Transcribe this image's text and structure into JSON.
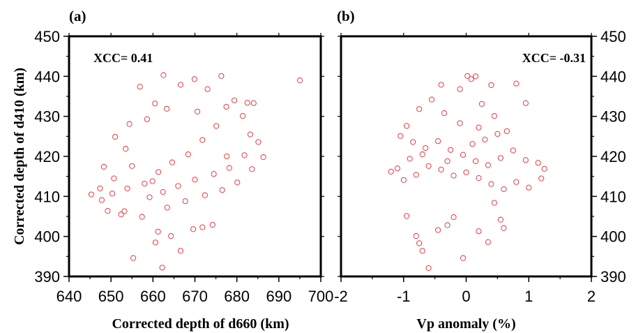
{
  "figure": {
    "marker_color": "#e8262b",
    "frame_color": "#000000"
  },
  "chart_data": [
    {
      "type": "scatter",
      "panel_label": "(a)",
      "annotation": "XCC= 0.41",
      "annotation_placement": "top-left",
      "xlabel": "Corrected depth of d660 (km)",
      "ylabel": "Corrected depth of d410 (km)",
      "xlim": [
        640,
        700
      ],
      "ylim": [
        390,
        450
      ],
      "xticks": [
        "640",
        "650",
        "660",
        "670",
        "680",
        "690",
        "700"
      ],
      "yticks": [
        "390",
        "400",
        "410",
        "420",
        "430",
        "440",
        "450"
      ],
      "ytick_side": "left",
      "grid": false,
      "marker": "open-circle",
      "points": [
        [
          655.3,
          394.6
        ],
        [
          662.2,
          392.2
        ],
        [
          666.6,
          396.4
        ],
        [
          660.6,
          398.5
        ],
        [
          664.3,
          400.1
        ],
        [
          669.6,
          401.8
        ],
        [
          671.8,
          402.3
        ],
        [
          674.2,
          402.9
        ],
        [
          661.2,
          401.2
        ],
        [
          657.4,
          404.9
        ],
        [
          653.2,
          406.3
        ],
        [
          649.2,
          406.4
        ],
        [
          647.8,
          409.1
        ],
        [
          650.3,
          410.7
        ],
        [
          653.9,
          412.0
        ],
        [
          652.4,
          405.5
        ],
        [
          656.9,
          437.4
        ],
        [
          662.5,
          440.3
        ],
        [
          669.9,
          439.3
        ],
        [
          676.3,
          440.1
        ],
        [
          695.0,
          439.0
        ],
        [
          666.6,
          437.9
        ],
        [
          673.0,
          436.8
        ],
        [
          679.4,
          434.0
        ],
        [
          682.5,
          433.4
        ],
        [
          684.0,
          433.3
        ],
        [
          660.5,
          433.2
        ],
        [
          658.6,
          429.3
        ],
        [
          654.4,
          428.1
        ],
        [
          663.3,
          431.9
        ],
        [
          670.6,
          431.2
        ],
        [
          677.5,
          432.4
        ],
        [
          681.4,
          430.1
        ],
        [
          683.2,
          425.5
        ],
        [
          685.1,
          423.6
        ],
        [
          686.3,
          419.8
        ],
        [
          683.6,
          416.8
        ],
        [
          681.8,
          420.3
        ],
        [
          677.6,
          420.0
        ],
        [
          675.1,
          427.6
        ],
        [
          671.8,
          424.1
        ],
        [
          668.4,
          420.5
        ],
        [
          664.6,
          418.5
        ],
        [
          661.3,
          416.1
        ],
        [
          658.0,
          413.2
        ],
        [
          655.0,
          417.6
        ],
        [
          653.5,
          421.9
        ],
        [
          651.0,
          424.9
        ],
        [
          648.3,
          417.4
        ],
        [
          647.4,
          412.0
        ],
        [
          645.3,
          410.5
        ],
        [
          650.7,
          414.5
        ],
        [
          659.2,
          409.8
        ],
        [
          663.4,
          407.2
        ],
        [
          667.7,
          408.8
        ],
        [
          672.4,
          410.3
        ],
        [
          676.5,
          411.6
        ],
        [
          680.1,
          413.5
        ],
        [
          678.2,
          417.1
        ],
        [
          674.5,
          415.6
        ],
        [
          670.0,
          414.2
        ],
        [
          666.0,
          412.6
        ],
        [
          662.4,
          411.1
        ],
        [
          659.9,
          413.8
        ]
      ]
    },
    {
      "type": "scatter",
      "panel_label": "(b)",
      "annotation": "XCC= -0.31",
      "annotation_placement": "top-right",
      "xlabel": "Vp anomaly (%)",
      "ylabel": "",
      "xlim": [
        -2,
        2
      ],
      "ylim": [
        390,
        450
      ],
      "xticks": [
        "-2",
        "-1",
        "0",
        "1",
        "2"
      ],
      "yticks": [
        "390",
        "400",
        "410",
        "420",
        "430",
        "440",
        "450"
      ],
      "ytick_side": "right",
      "grid": false,
      "marker": "open-circle",
      "points": [
        [
          -0.6,
          392.1
        ],
        [
          -0.05,
          394.6
        ],
        [
          -0.7,
          396.4
        ],
        [
          -0.75,
          398.3
        ],
        [
          0.35,
          398.6
        ],
        [
          -0.8,
          400.1
        ],
        [
          -0.45,
          401.6
        ],
        [
          0.2,
          401.3
        ],
        [
          0.6,
          402.1
        ],
        [
          -0.3,
          402.8
        ],
        [
          0.55,
          404.2
        ],
        [
          -0.95,
          405.1
        ],
        [
          -0.2,
          404.8
        ],
        [
          0.45,
          408.4
        ],
        [
          -0.4,
          437.9
        ],
        [
          0.02,
          440.1
        ],
        [
          0.08,
          439.3
        ],
        [
          0.15,
          440.0
        ],
        [
          0.8,
          438.2
        ],
        [
          0.4,
          437.8
        ],
        [
          0.95,
          433.3
        ],
        [
          -0.1,
          436.8
        ],
        [
          0.25,
          433.1
        ],
        [
          -0.55,
          434.2
        ],
        [
          -0.75,
          431.8
        ],
        [
          -0.95,
          427.6
        ],
        [
          -1.05,
          425.1
        ],
        [
          -0.85,
          423.6
        ],
        [
          -0.65,
          422.1
        ],
        [
          -0.45,
          423.8
        ],
        [
          -0.25,
          421.6
        ],
        [
          -0.05,
          420.4
        ],
        [
          0.15,
          418.8
        ],
        [
          0.35,
          417.8
        ],
        [
          0.55,
          419.6
        ],
        [
          0.75,
          421.5
        ],
        [
          0.95,
          419.1
        ],
        [
          1.15,
          418.4
        ],
        [
          1.25,
          416.9
        ],
        [
          1.2,
          414.5
        ],
        [
          1.0,
          412.2
        ],
        [
          0.8,
          413.6
        ],
        [
          0.6,
          411.8
        ],
        [
          0.4,
          413.1
        ],
        [
          0.2,
          414.6
        ],
        [
          0.0,
          416.0
        ],
        [
          -0.2,
          415.2
        ],
        [
          -0.4,
          416.7
        ],
        [
          -0.6,
          417.6
        ],
        [
          -0.8,
          415.4
        ],
        [
          -1.0,
          414.1
        ],
        [
          -1.1,
          417.0
        ],
        [
          -1.2,
          416.2
        ],
        [
          -0.9,
          419.4
        ],
        [
          -0.7,
          420.5
        ],
        [
          -0.3,
          418.8
        ],
        [
          0.1,
          423.1
        ],
        [
          0.3,
          424.2
        ],
        [
          0.5,
          425.6
        ],
        [
          0.2,
          427.2
        ],
        [
          -0.1,
          428.3
        ],
        [
          0.45,
          430.1
        ],
        [
          -0.35,
          430.8
        ],
        [
          0.65,
          426.3
        ]
      ]
    }
  ]
}
